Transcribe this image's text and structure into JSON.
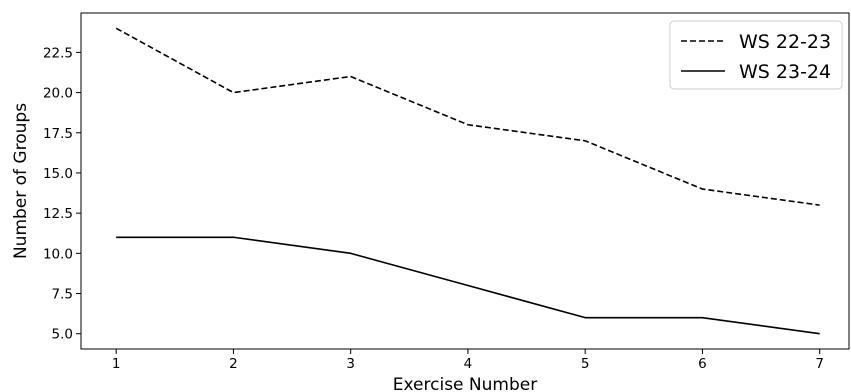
{
  "chart_data": {
    "type": "line",
    "title": "",
    "xlabel": "Exercise Number",
    "ylabel": "Number of Groups",
    "x": [
      1,
      2,
      3,
      4,
      5,
      6,
      7
    ],
    "xticks": [
      "1",
      "2",
      "3",
      "4",
      "5",
      "6",
      "7"
    ],
    "yticks": [
      "5.0",
      "7.5",
      "10.0",
      "12.5",
      "15.0",
      "17.5",
      "20.0",
      "22.5"
    ],
    "xlim": [
      0.7,
      7.25
    ],
    "ylim": [
      4.05,
      24.95
    ],
    "grid": false,
    "legend_position": "top-right",
    "series": [
      {
        "name": "WS 22-23",
        "style": "dashed",
        "color": "#000000",
        "values": [
          24,
          20,
          21,
          18,
          17,
          14,
          13
        ]
      },
      {
        "name": "WS 23-24",
        "style": "solid",
        "color": "#000000",
        "values": [
          11,
          11,
          10,
          8,
          6,
          6,
          5
        ]
      }
    ]
  }
}
